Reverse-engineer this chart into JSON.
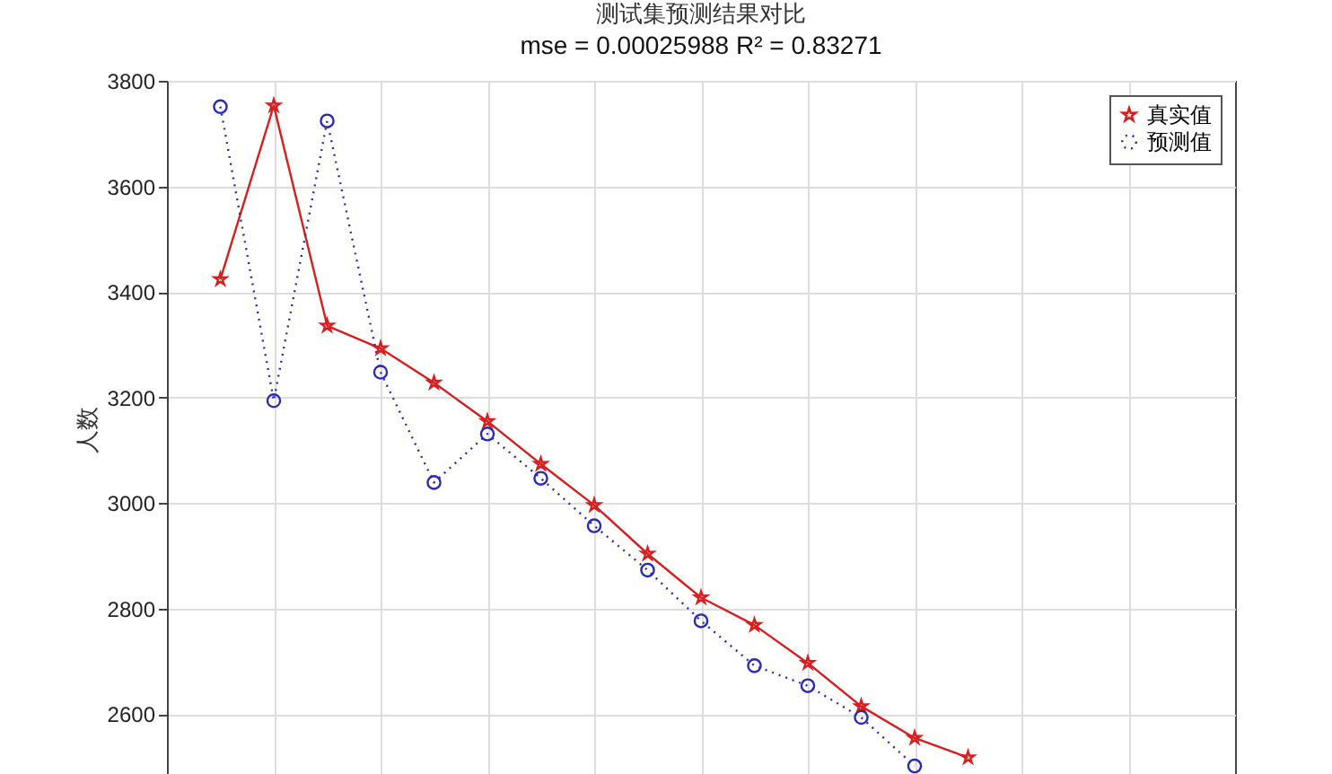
{
  "chart_data": {
    "type": "line",
    "title": "测试集预测结果对比",
    "subtitle": "mse = 0.00025988 R² = 0.83271",
    "ylabel": "人数",
    "categories": [
      null,
      null,
      null,
      null,
      null,
      null,
      null,
      null,
      null,
      null,
      null,
      null,
      null,
      null,
      null,
      null,
      null,
      null,
      null
    ],
    "series": [
      {
        "name": "真实值",
        "color": "#d81e1e",
        "marker": "star",
        "line_style": "solid",
        "values": [
          3424,
          3753,
          3336,
          3293,
          3228,
          3155,
          3074,
          2996,
          2904,
          2821,
          2769,
          2697,
          2615,
          2555,
          2518,
          null,
          null,
          null,
          null
        ]
      },
      {
        "name": "预测值",
        "color": "#2a2ab8",
        "marker": "circle",
        "line_style": "dotted",
        "values": [
          3751,
          3194,
          3724,
          3248,
          3039,
          3131,
          3047,
          2957,
          2873,
          2777,
          2692,
          2654,
          2594,
          2502,
          null,
          null,
          null,
          null,
          null
        ]
      }
    ],
    "ylim": [
      2480,
      3800
    ],
    "yticks": [
      2600,
      2800,
      3000,
      3200,
      3400,
      3600,
      3800
    ],
    "grid": true,
    "legend": "top right",
    "tick_labels": "y"
  }
}
